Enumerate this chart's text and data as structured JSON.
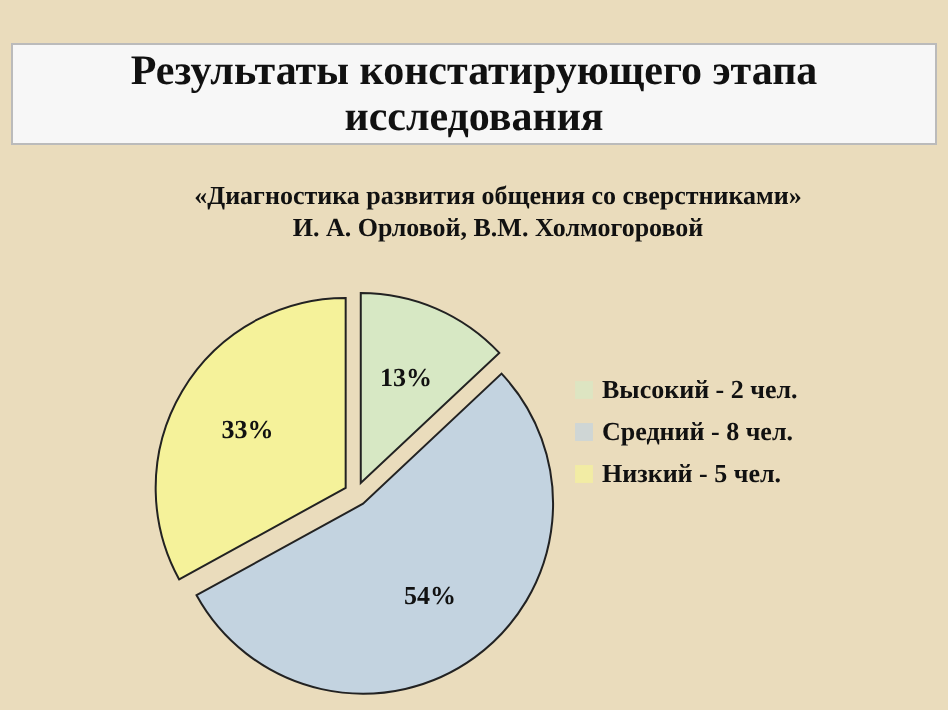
{
  "chart_data": {
    "type": "pie",
    "title": "Результаты  констатирующего  этапа\nисследования",
    "subtitle": "«Диагностика развития общения со сверстниками»\nИ. А. Орловой, В.М. Холмогоровой",
    "categories": [
      "Высокий - 2 чел.",
      "Средний - 8 чел.",
      "Низкий - 5 чел."
    ],
    "values": [
      13,
      54,
      33
    ],
    "colors": [
      "#d7e8c4",
      "#c3d3e0",
      "#f5f29a"
    ],
    "value_labels": [
      "13%",
      "54%",
      "33%"
    ],
    "legend": "right"
  }
}
